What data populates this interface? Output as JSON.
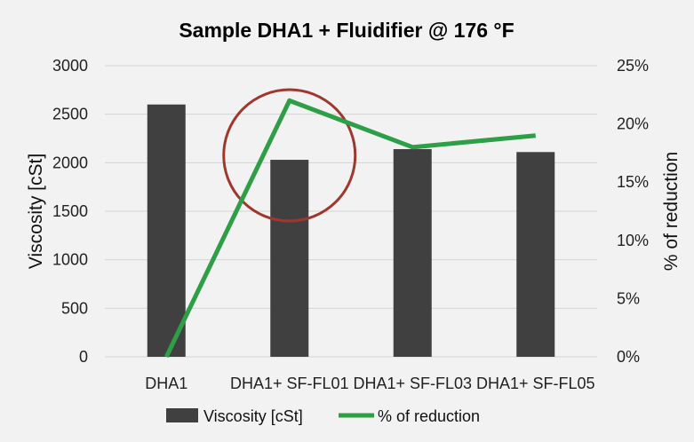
{
  "chart_data": {
    "type": "bar",
    "title": "Sample DHA1 + Fluidifier @ 176 °F",
    "categories": [
      "DHA1",
      "DHA1+ SF-FL01",
      "DHA1+ SF-FL03",
      "DHA1+ SF-FL05"
    ],
    "series": [
      {
        "name": "Viscosity [cSt]",
        "type": "bar",
        "axis": "left",
        "color": "#404040",
        "values": [
          2600,
          2030,
          2140,
          2110
        ]
      },
      {
        "name": "% of reduction",
        "type": "line",
        "axis": "right",
        "color": "#2e9e47",
        "values": [
          0,
          22,
          18,
          19
        ]
      }
    ],
    "ylabel": "Viscosity [cSt]",
    "ylim": [
      0,
      3000
    ],
    "yticks": [
      "0",
      "500",
      "1000",
      "1500",
      "2000",
      "2500",
      "3000"
    ],
    "y2label": "% of reduction",
    "y2lim": [
      0,
      25
    ],
    "y2ticks": [
      "0%",
      "5%",
      "10%",
      "15%",
      "20%",
      "25%"
    ],
    "grid": true,
    "legend_position": "bottom",
    "annotation": {
      "shape": "circle",
      "color": "#a0372c",
      "highlights_category": "DHA1+ SF-FL01"
    }
  }
}
